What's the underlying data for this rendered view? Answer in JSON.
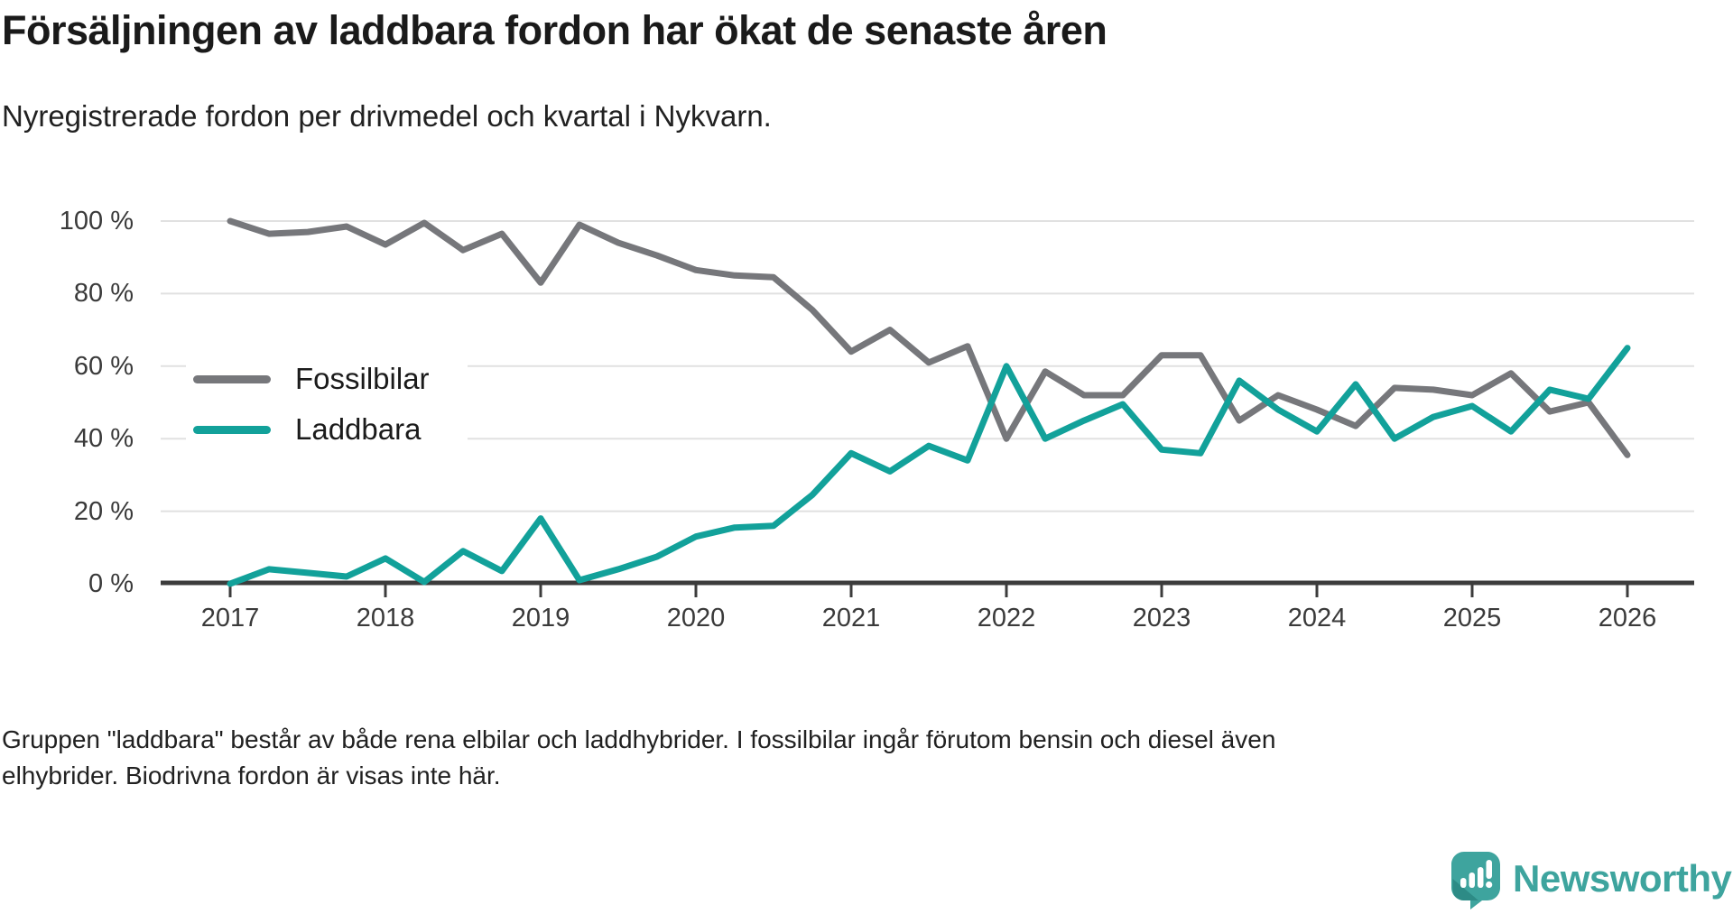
{
  "header": {
    "title": "Försäljningen av laddbara fordon har ökat de senaste åren",
    "subtitle": "Nyregistrerade fordon per drivmedel och kvartal i Nykvarn."
  },
  "chart_data": {
    "type": "line",
    "title": "Nyregistrerade fordon per drivmedel och kvartal i Nykvarn",
    "x_unit": "quarter",
    "x_start": "2017 Q1",
    "x_end": "2026 Q1",
    "x_tick_labels": [
      "2017",
      "2018",
      "2019",
      "2020",
      "2021",
      "2022",
      "2023",
      "2024",
      "2025",
      "2026"
    ],
    "y_tick_labels": [
      "0 %",
      "20 %",
      "40 %",
      "60 %",
      "80 %",
      "100 %"
    ],
    "ylim": [
      0,
      100
    ],
    "grid": true,
    "legend_position": "inside-upper-left",
    "series": [
      {
        "name": "Fossilbilar",
        "color": "#76777b",
        "values": [
          100,
          96.5,
          97,
          98.5,
          93.5,
          99.5,
          92,
          96.5,
          83,
          99,
          94,
          90.5,
          86.5,
          85,
          84.5,
          75.5,
          64,
          70,
          61,
          65.5,
          40,
          58.5,
          52,
          52,
          63,
          63,
          45,
          52,
          48,
          43.5,
          54,
          53.5,
          52,
          58,
          47.5,
          50,
          35.5
        ]
      },
      {
        "name": "Laddbara",
        "color": "#12a19a",
        "values": [
          0,
          4,
          3,
          2,
          7,
          0.5,
          9,
          3.5,
          18,
          1,
          4,
          7.5,
          13,
          15.5,
          16,
          24.5,
          36,
          31,
          38,
          34,
          60,
          40,
          45,
          49.5,
          37,
          36,
          56,
          48,
          42,
          55,
          40,
          46,
          49,
          42,
          53.5,
          51,
          65
        ]
      }
    ]
  },
  "footer": {
    "line1": "Gruppen \"laddbara\" består av både rena elbilar och laddhybrider. I fossilbilar ingår förutom bensin och diesel även",
    "line2": "elhybrider. Biodrivna fordon är visas inte här."
  },
  "branding": {
    "name": "Newsworthy",
    "color": "#3ea49e",
    "icon": "newsworthy-speech-bubble-chart-icon"
  }
}
